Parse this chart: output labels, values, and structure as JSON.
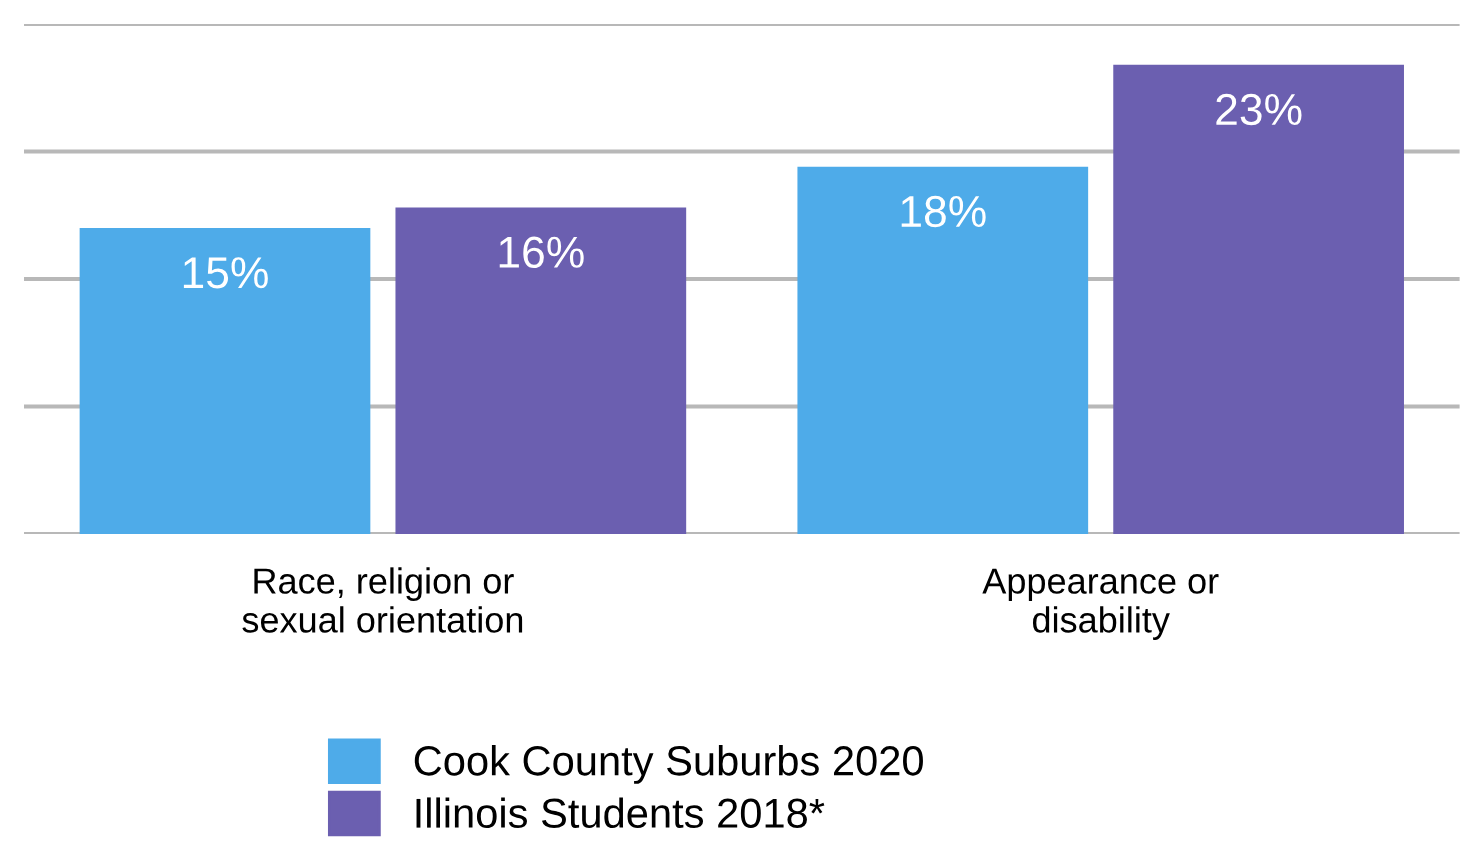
{
  "chart_data": {
    "type": "bar",
    "categories": [
      "Race, religion or\nsexual orientation",
      "Appearance or\ndisability"
    ],
    "series": [
      {
        "name": "Cook County Suburbs 2020",
        "color": "#4eabe9",
        "values": [
          15,
          18
        ],
        "value_labels": [
          "15%",
          "18%"
        ]
      },
      {
        "name": "Illinois Students 2018*",
        "color": "#6b5fb0",
        "values": [
          16,
          23
        ],
        "value_labels": [
          "16%",
          "23%"
        ]
      }
    ],
    "ylim": [
      0,
      25
    ],
    "yticks": [
      {
        "value": 0,
        "label": null
      },
      {
        "value": 6.25,
        "label": null
      },
      {
        "value": 12.5,
        "label": null
      },
      {
        "value": 18.75,
        "label": null
      },
      {
        "value": 25,
        "label": null
      }
    ],
    "grid": "y",
    "legend": "bottom"
  }
}
